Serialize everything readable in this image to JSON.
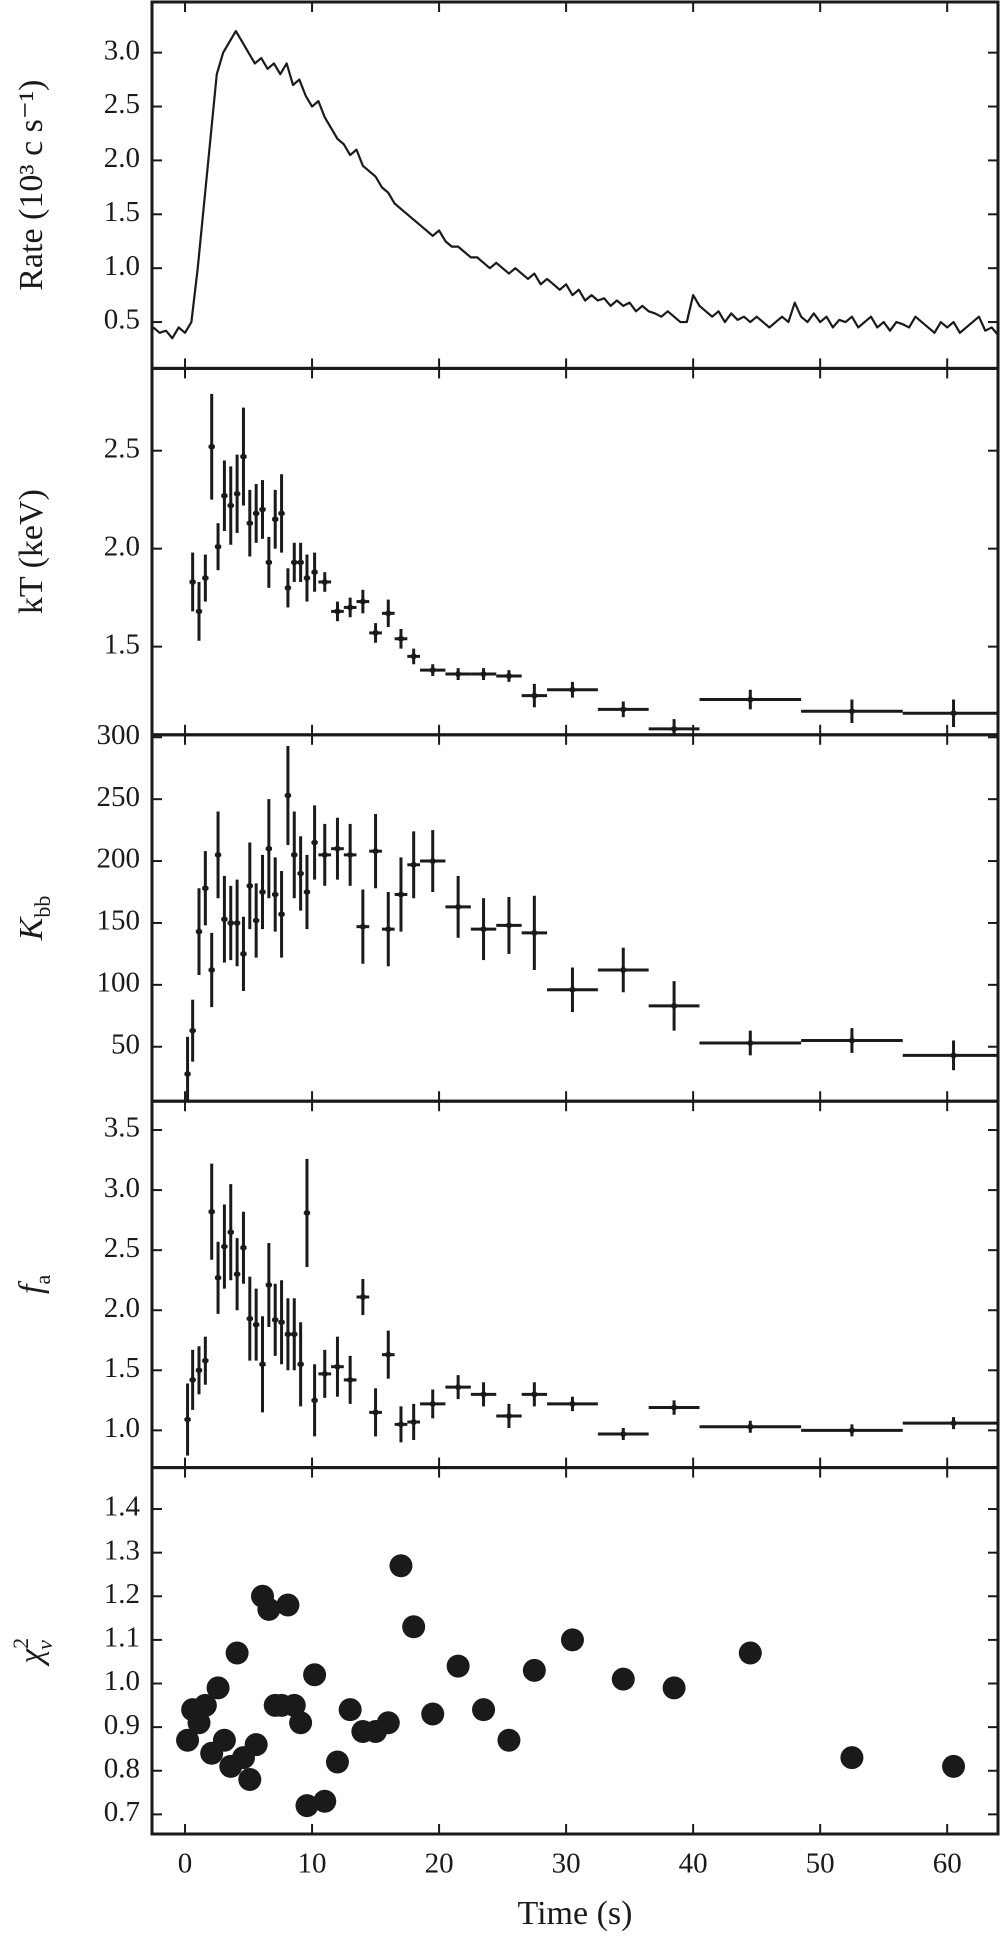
{
  "chart_data": [
    {
      "type": "line",
      "ylabel": "Rate (10³ c s⁻¹)",
      "color": "#1a1a1a",
      "xlim": [
        -2.6,
        64
      ],
      "xticks": [
        0,
        10,
        20,
        30,
        40,
        50,
        60
      ],
      "ylim": [
        0.07,
        3.47
      ],
      "yticks": [
        0.5,
        {
          "value": 1,
          "label": "1.0"
        },
        1.5,
        {
          "value": 2,
          "label": "2.0"
        },
        2.5,
        {
          "value": 3,
          "label": "3.0"
        }
      ],
      "x": [
        -2.5,
        -2,
        -1.5,
        -1,
        -0.5,
        0,
        0.5,
        1,
        1.5,
        2,
        2.5,
        3,
        3.5,
        4,
        4.5,
        5,
        5.5,
        6,
        6.5,
        7,
        7.5,
        8,
        8.5,
        9,
        9.5,
        10,
        10.5,
        11,
        11.5,
        12,
        12.5,
        13,
        13.5,
        14,
        14.5,
        15,
        15.5,
        16,
        16.5,
        17,
        17.5,
        18,
        18.5,
        19,
        19.5,
        20,
        20.5,
        21,
        21.5,
        22,
        22.5,
        23,
        23.5,
        24,
        24.5,
        25,
        25.5,
        26,
        26.5,
        27,
        27.5,
        28,
        28.5,
        29,
        29.5,
        30,
        30.5,
        31,
        31.5,
        32,
        32.5,
        33,
        33.5,
        34,
        34.5,
        35,
        35.5,
        36,
        36.5,
        37,
        37.5,
        38,
        38.5,
        39,
        39.5,
        40,
        40.5,
        41,
        41.5,
        42,
        42.5,
        43,
        43.5,
        44,
        44.5,
        45,
        45.5,
        46,
        46.5,
        47,
        47.5,
        48,
        48.5,
        49,
        49.5,
        50,
        50.5,
        51,
        51.5,
        52,
        52.5,
        53,
        53.5,
        54,
        54.5,
        55,
        55.5,
        56,
        56.5,
        57,
        57.5,
        58,
        58.5,
        59,
        59.5,
        60,
        60.5,
        61,
        61.5,
        62,
        62.5,
        63,
        63.5,
        64
      ],
      "values": [
        0.45,
        0.4,
        0.42,
        0.35,
        0.45,
        0.4,
        0.5,
        1.0,
        1.6,
        2.2,
        2.8,
        3.0,
        3.1,
        3.2,
        3.1,
        3.0,
        2.9,
        2.95,
        2.85,
        2.9,
        2.8,
        2.9,
        2.7,
        2.75,
        2.6,
        2.5,
        2.55,
        2.4,
        2.3,
        2.2,
        2.15,
        2.05,
        2.1,
        1.95,
        1.9,
        1.85,
        1.75,
        1.7,
        1.6,
        1.55,
        1.5,
        1.45,
        1.4,
        1.35,
        1.3,
        1.35,
        1.25,
        1.2,
        1.2,
        1.15,
        1.1,
        1.1,
        1.05,
        1.0,
        1.05,
        1.0,
        0.95,
        1.0,
        0.95,
        0.9,
        0.95,
        0.85,
        0.9,
        0.85,
        0.8,
        0.85,
        0.75,
        0.8,
        0.7,
        0.75,
        0.7,
        0.72,
        0.65,
        0.7,
        0.65,
        0.68,
        0.6,
        0.65,
        0.6,
        0.58,
        0.55,
        0.6,
        0.55,
        0.5,
        0.5,
        0.75,
        0.65,
        0.6,
        0.55,
        0.6,
        0.5,
        0.58,
        0.52,
        0.55,
        0.5,
        0.55,
        0.5,
        0.45,
        0.5,
        0.55,
        0.5,
        0.68,
        0.55,
        0.5,
        0.58,
        0.5,
        0.55,
        0.45,
        0.52,
        0.5,
        0.55,
        0.45,
        0.5,
        0.55,
        0.45,
        0.5,
        0.42,
        0.5,
        0.48,
        0.45,
        0.55,
        0.5,
        0.45,
        0.4,
        0.5,
        0.45,
        0.5,
        0.4,
        0.45,
        0.5,
        0.55,
        0.42,
        0.45,
        0.38
      ]
    },
    {
      "type": "errorbar",
      "ylabel": "kT (keV)",
      "color": "#1a1a1a",
      "xlim": [
        -2.6,
        64
      ],
      "xticks": [
        0,
        10,
        20,
        30,
        40,
        50,
        60
      ],
      "ylim": [
        1.05,
        2.92
      ],
      "yticks": [
        1.5,
        {
          "value": 2,
          "label": "2.0"
        },
        2.5
      ],
      "x": [
        0.6,
        1.1,
        1.6,
        2.1,
        2.6,
        3.1,
        3.6,
        4.1,
        4.6,
        5.1,
        5.6,
        6.1,
        6.6,
        7.1,
        7.6,
        8.1,
        8.6,
        9.1,
        9.6,
        10.2,
        11,
        12,
        13,
        14,
        15,
        16,
        17,
        18,
        19.5,
        21.5,
        23.5,
        25.5,
        27.5,
        30.5,
        34.5,
        38.5,
        44.5,
        52.5,
        60.5
      ],
      "xerr": [
        0.25,
        0.25,
        0.25,
        0.25,
        0.25,
        0.25,
        0.25,
        0.25,
        0.25,
        0.25,
        0.25,
        0.25,
        0.25,
        0.25,
        0.25,
        0.25,
        0.25,
        0.25,
        0.25,
        0.25,
        0.5,
        0.5,
        0.5,
        0.5,
        0.5,
        0.5,
        0.5,
        0.5,
        1,
        1,
        1,
        1,
        1,
        2,
        2,
        2,
        4,
        4,
        4
      ],
      "values": [
        1.83,
        1.68,
        1.85,
        2.52,
        2.01,
        2.27,
        2.22,
        2.28,
        2.47,
        2.13,
        2.18,
        2.2,
        1.93,
        2.15,
        2.18,
        1.8,
        1.93,
        1.93,
        1.85,
        1.88,
        1.83,
        1.68,
        1.7,
        1.73,
        1.57,
        1.67,
        1.54,
        1.45,
        1.38,
        1.36,
        1.36,
        1.35,
        1.25,
        1.28,
        1.18,
        1.08,
        1.23,
        1.17,
        1.16
      ],
      "yerr": [
        0.15,
        0.15,
        0.12,
        0.27,
        0.12,
        0.18,
        0.2,
        0.2,
        0.25,
        0.17,
        0.15,
        0.15,
        0.13,
        0.15,
        0.2,
        0.1,
        0.1,
        0.1,
        0.12,
        0.1,
        0.05,
        0.05,
        0.05,
        0.06,
        0.05,
        0.07,
        0.05,
        0.04,
        0.03,
        0.03,
        0.03,
        0.03,
        0.06,
        0.04,
        0.04,
        0.05,
        0.05,
        0.06,
        0.07
      ]
    },
    {
      "type": "errorbar",
      "ylabel": {
        "text": "K",
        "sub": "bb"
      },
      "color": "#1a1a1a",
      "xlim": [
        -2.6,
        64
      ],
      "xticks": [
        0,
        10,
        20,
        30,
        40,
        50,
        60
      ],
      "ylim": [
        6,
        302
      ],
      "yticks": [
        50,
        100,
        150,
        200,
        250,
        300
      ],
      "x": [
        0.2,
        0.6,
        1.1,
        1.6,
        2.1,
        2.6,
        3.1,
        3.6,
        4.1,
        4.6,
        5.1,
        5.6,
        6.1,
        6.6,
        7.1,
        7.6,
        8.1,
        8.6,
        9.1,
        9.6,
        10.2,
        11,
        12,
        13,
        14,
        15,
        16,
        17,
        18,
        19.5,
        21.5,
        23.5,
        25.5,
        27.5,
        30.5,
        34.5,
        38.5,
        44.5,
        52.5,
        60.5
      ],
      "xerr": [
        0.25,
        0.25,
        0.25,
        0.25,
        0.25,
        0.25,
        0.25,
        0.25,
        0.25,
        0.25,
        0.25,
        0.25,
        0.25,
        0.25,
        0.25,
        0.25,
        0.25,
        0.25,
        0.25,
        0.25,
        0.25,
        0.5,
        0.5,
        0.5,
        0.5,
        0.5,
        0.5,
        0.5,
        0.5,
        1,
        1,
        1,
        1,
        1,
        2,
        2,
        2,
        4,
        4,
        4
      ],
      "values": [
        28,
        63,
        143,
        178,
        112,
        205,
        153,
        150,
        150,
        125,
        180,
        152,
        175,
        210,
        173,
        157,
        253,
        205,
        190,
        175,
        215,
        205,
        210,
        205,
        147,
        208,
        145,
        173,
        197,
        200,
        163,
        145,
        148,
        142,
        96,
        112,
        83,
        53,
        55,
        43
      ],
      "yerr": [
        30,
        25,
        35,
        30,
        30,
        35,
        35,
        30,
        35,
        30,
        35,
        30,
        30,
        40,
        30,
        35,
        40,
        35,
        30,
        30,
        30,
        25,
        25,
        25,
        30,
        30,
        30,
        30,
        27,
        25,
        25,
        25,
        23,
        30,
        18,
        18,
        20,
        10,
        10,
        12
      ]
    },
    {
      "type": "errorbar",
      "ylabel": {
        "text": "f",
        "sub": "a"
      },
      "color": "#1a1a1a",
      "xlim": [
        -2.6,
        64
      ],
      "xticks": [
        0,
        10,
        20,
        30,
        40,
        50,
        60
      ],
      "ylim": [
        0.69,
        3.74
      ],
      "yticks": [
        {
          "value": 1,
          "label": "1.0"
        },
        1.5,
        {
          "value": 2,
          "label": "2.0"
        },
        2.5,
        {
          "value": 3,
          "label": "3.0"
        },
        3.5
      ],
      "x": [
        0.2,
        0.6,
        1.1,
        1.6,
        2.1,
        2.6,
        3.1,
        3.6,
        4.1,
        4.6,
        5.1,
        5.6,
        6.1,
        6.6,
        7.1,
        7.6,
        8.1,
        8.6,
        9.1,
        9.6,
        10.2,
        11,
        12,
        13,
        14,
        15,
        16,
        17,
        18,
        19.5,
        21.5,
        23.5,
        25.5,
        27.5,
        30.5,
        34.5,
        38.5,
        44.5,
        52.5,
        60.5
      ],
      "xerr": [
        0.25,
        0.25,
        0.25,
        0.25,
        0.25,
        0.25,
        0.25,
        0.25,
        0.25,
        0.25,
        0.25,
        0.25,
        0.25,
        0.25,
        0.25,
        0.25,
        0.25,
        0.25,
        0.25,
        0.25,
        0.25,
        0.5,
        0.5,
        0.5,
        0.5,
        0.5,
        0.5,
        0.5,
        0.5,
        1,
        1,
        1,
        1,
        1,
        2,
        2,
        2,
        4,
        4,
        4
      ],
      "values": [
        1.09,
        1.42,
        1.5,
        1.58,
        2.82,
        2.27,
        2.53,
        2.65,
        2.3,
        2.52,
        1.93,
        1.88,
        1.55,
        2.21,
        1.92,
        1.9,
        1.8,
        1.8,
        1.55,
        2.81,
        1.25,
        1.47,
        1.53,
        1.42,
        2.11,
        1.15,
        1.63,
        1.05,
        1.07,
        1.22,
        1.36,
        1.3,
        1.12,
        1.3,
        1.22,
        0.97,
        1.19,
        1.03,
        1.0,
        1.06
      ],
      "yerr": [
        0.3,
        0.25,
        0.2,
        0.2,
        0.4,
        0.3,
        0.35,
        0.4,
        0.3,
        0.3,
        0.35,
        0.3,
        0.4,
        0.35,
        0.3,
        0.35,
        0.3,
        0.3,
        0.35,
        0.45,
        0.3,
        0.2,
        0.25,
        0.2,
        0.15,
        0.2,
        0.2,
        0.15,
        0.15,
        0.12,
        0.1,
        0.1,
        0.1,
        0.1,
        0.06,
        0.05,
        0.06,
        0.05,
        0.05,
        0.05
      ]
    },
    {
      "type": "scatter",
      "ylabel": {
        "text": "χ",
        "sup": "2",
        "sub": "ν"
      },
      "xlabel": "Time (s)",
      "color": "#1a1a1a",
      "xlim": [
        -2.6,
        64
      ],
      "xticks": [
        0,
        10,
        20,
        30,
        40,
        50,
        60
      ],
      "ylim": [
        0.655,
        1.495
      ],
      "yticks": [
        0.7,
        0.8,
        0.9,
        {
          "value": 1,
          "label": "1.0"
        },
        1.1,
        1.2,
        1.3,
        1.4
      ],
      "x": [
        0.2,
        0.6,
        1.1,
        1.6,
        2.1,
        2.6,
        3.1,
        3.6,
        4.1,
        4.6,
        5.1,
        5.6,
        6.1,
        6.6,
        7.1,
        7.6,
        8.1,
        8.6,
        9.1,
        9.6,
        10.2,
        11,
        12,
        13,
        14,
        15,
        16,
        17,
        18,
        19.5,
        21.5,
        23.5,
        25.5,
        27.5,
        30.5,
        34.5,
        38.5,
        44.5,
        52.5,
        60.5
      ],
      "values": [
        0.87,
        0.94,
        0.91,
        0.95,
        0.84,
        0.99,
        0.87,
        0.81,
        1.07,
        0.83,
        0.78,
        0.86,
        1.2,
        1.17,
        0.95,
        0.95,
        1.18,
        0.95,
        0.91,
        0.72,
        1.02,
        0.73,
        0.82,
        0.94,
        0.89,
        0.89,
        0.91,
        1.27,
        1.13,
        0.93,
        1.04,
        0.94,
        0.87,
        1.03,
        1.1,
        1.01,
        0.99,
        1.07,
        0.83,
        0.81
      ]
    }
  ]
}
